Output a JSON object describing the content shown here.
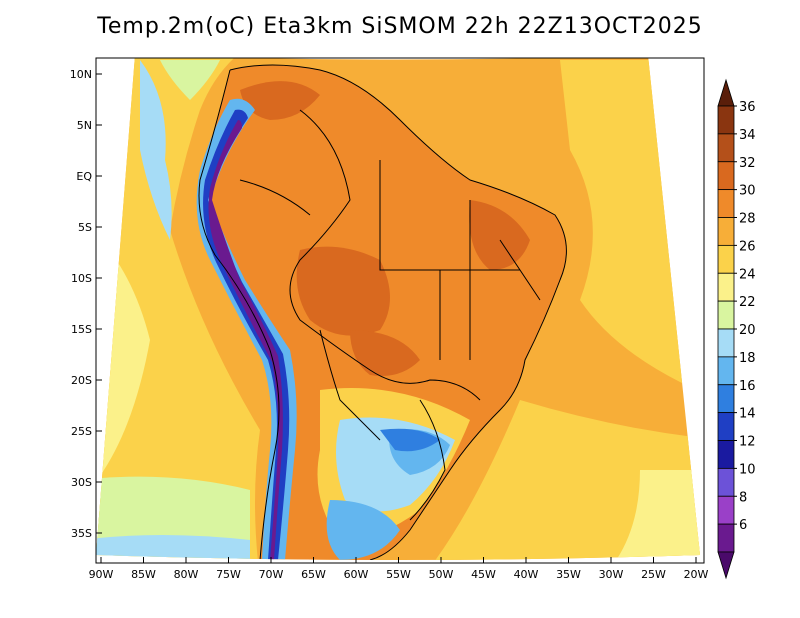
{
  "title": "Temp.2m(oC) Eta3km SiSMOM 22h 22Z13OCT2025",
  "latitude_ticks": [
    "10N",
    "5N",
    "EQ",
    "5S",
    "10S",
    "15S",
    "20S",
    "25S",
    "30S",
    "35S"
  ],
  "longitude_ticks": [
    "90W",
    "85W",
    "80W",
    "75W",
    "70W",
    "65W",
    "60W",
    "55W",
    "50W",
    "45W",
    "40W",
    "35W",
    "30W",
    "25W",
    "20W"
  ],
  "colorbar": {
    "labels": [
      "36",
      "34",
      "32",
      "30",
      "28",
      "26",
      "24",
      "22",
      "20",
      "18",
      "16",
      "14",
      "12",
      "10",
      "8",
      "6"
    ],
    "colors": [
      "#5a1e0a",
      "#8a3510",
      "#b4501a",
      "#d9691f",
      "#ef8a2a",
      "#f7ae38",
      "#fbd24a",
      "#fbf18a",
      "#d9f5a0",
      "#a6dcf6",
      "#63b6ef",
      "#2f7fe0",
      "#1f3fc4",
      "#1a1aa0",
      "#6c52d8",
      "#9a40c8",
      "#6a1a8f",
      "#4a0a6a"
    ]
  },
  "colors": {
    "ocean_warm": "#f7ae38",
    "ocean_mild": "#fbd24a",
    "land_hot": "#ef8a2a",
    "andes": "#6a1a8f"
  }
}
